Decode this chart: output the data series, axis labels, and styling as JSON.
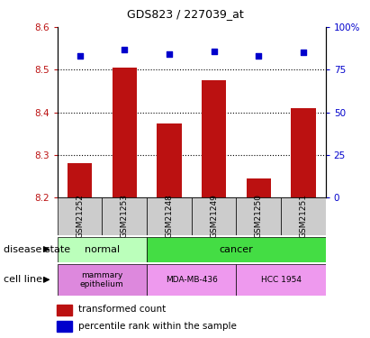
{
  "title": "GDS823 / 227039_at",
  "samples": [
    "GSM21252",
    "GSM21253",
    "GSM21248",
    "GSM21249",
    "GSM21250",
    "GSM21251"
  ],
  "bar_values": [
    8.28,
    8.505,
    8.375,
    8.475,
    8.245,
    8.41
  ],
  "percentile_values": [
    83,
    87,
    84,
    86,
    83,
    85
  ],
  "ylim": [
    8.2,
    8.6
  ],
  "yticks_left": [
    8.2,
    8.3,
    8.4,
    8.5,
    8.6
  ],
  "yticks_right": [
    0,
    25,
    50,
    75,
    100
  ],
  "bar_color": "#bb1111",
  "dot_color": "#0000cc",
  "bar_bottom": 8.2,
  "normal_color_light": "#bbffbb",
  "cancer_color": "#44dd44",
  "mammary_color": "#dd88dd",
  "cell_color": "#ee99ee",
  "label_disease": "disease state",
  "label_cell": "cell line",
  "legend_bar_label": "transformed count",
  "legend_dot_label": "percentile rank within the sample",
  "sample_bg_color": "#cccccc",
  "title_fontsize": 9,
  "tick_fontsize": 7.5,
  "label_fontsize": 8,
  "sample_fontsize": 6.5,
  "row_fontsize": 8,
  "legend_fontsize": 7.5
}
